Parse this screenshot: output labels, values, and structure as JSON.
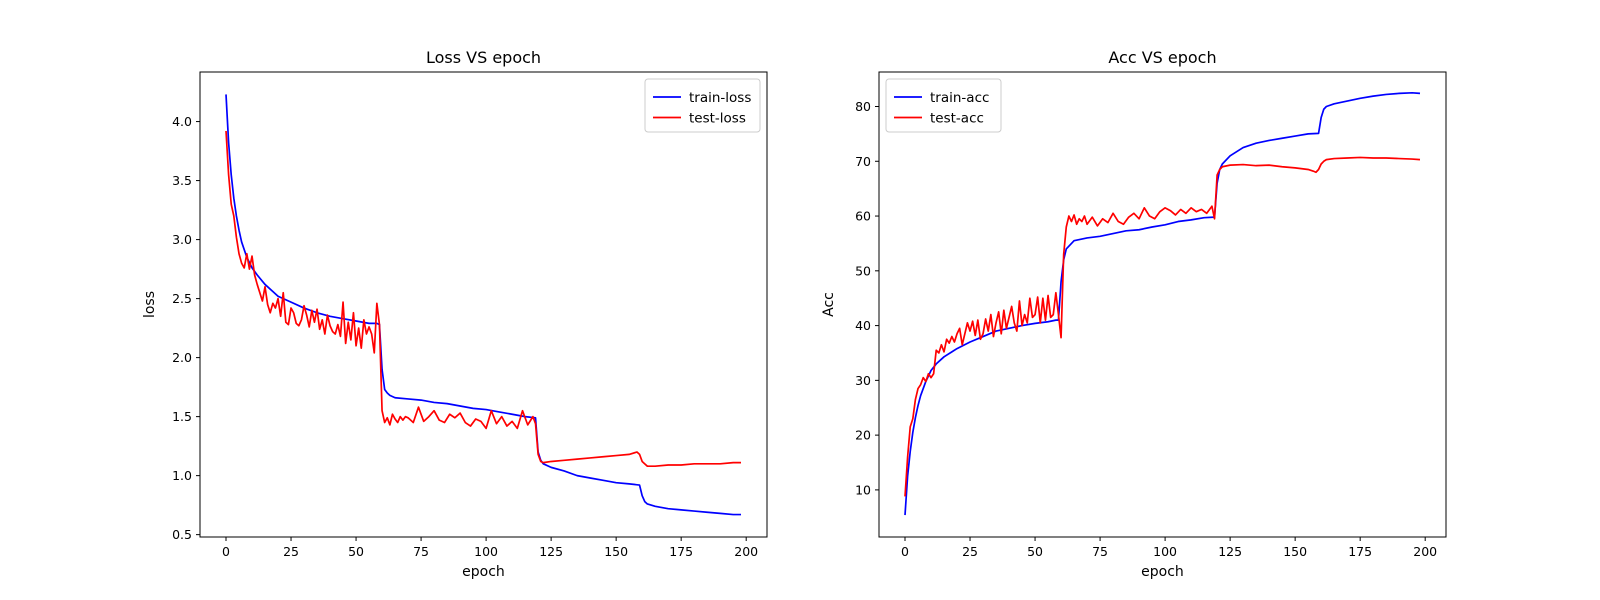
{
  "chart_data": [
    {
      "type": "line",
      "title": "Loss VS epoch",
      "xlabel": "epoch",
      "ylabel": "loss",
      "xlim": [
        -10,
        208
      ],
      "ylim": [
        0.48,
        4.42
      ],
      "xticks": [
        0,
        25,
        50,
        75,
        100,
        125,
        150,
        175,
        200
      ],
      "yticks": [
        0.5,
        1.0,
        1.5,
        2.0,
        2.5,
        3.0,
        3.5,
        4.0
      ],
      "tick_labels_x": [
        "0",
        "25",
        "50",
        "75",
        "100",
        "125",
        "150",
        "175",
        "200"
      ],
      "tick_labels_y": [
        "0.5",
        "1.0",
        "1.5",
        "2.0",
        "2.5",
        "3.0",
        "3.5",
        "4.0"
      ],
      "grid": false,
      "legend": "top-right",
      "series": [
        {
          "name": "train-loss",
          "color": "#0000ff",
          "x": [
            0,
            1,
            2,
            3,
            4,
            5,
            6,
            8,
            10,
            12,
            15,
            18,
            20,
            25,
            30,
            35,
            40,
            45,
            50,
            55,
            58,
            59,
            60,
            61,
            62,
            63,
            65,
            70,
            75,
            80,
            85,
            90,
            95,
            100,
            105,
            110,
            115,
            119,
            120,
            121,
            122,
            125,
            130,
            135,
            140,
            145,
            150,
            155,
            159,
            160,
            161,
            162,
            165,
            170,
            175,
            180,
            185,
            190,
            195,
            198
          ],
          "y": [
            4.23,
            3.82,
            3.55,
            3.35,
            3.2,
            3.08,
            2.98,
            2.85,
            2.76,
            2.7,
            2.62,
            2.56,
            2.52,
            2.47,
            2.42,
            2.38,
            2.35,
            2.33,
            2.31,
            2.29,
            2.29,
            2.28,
            1.9,
            1.73,
            1.7,
            1.68,
            1.66,
            1.65,
            1.64,
            1.62,
            1.61,
            1.59,
            1.57,
            1.56,
            1.54,
            1.52,
            1.5,
            1.49,
            1.2,
            1.13,
            1.1,
            1.07,
            1.04,
            1.0,
            0.98,
            0.96,
            0.94,
            0.93,
            0.92,
            0.83,
            0.78,
            0.76,
            0.74,
            0.72,
            0.71,
            0.7,
            0.69,
            0.68,
            0.67,
            0.67
          ]
        },
        {
          "name": "test-loss",
          "color": "#ff0000",
          "x": [
            0,
            1,
            2,
            3,
            4,
            5,
            6,
            7,
            8,
            9,
            10,
            11,
            12,
            13,
            14,
            15,
            16,
            17,
            18,
            19,
            20,
            21,
            22,
            23,
            24,
            25,
            26,
            27,
            28,
            29,
            30,
            31,
            32,
            33,
            34,
            35,
            36,
            37,
            38,
            39,
            40,
            41,
            42,
            43,
            44,
            45,
            46,
            47,
            48,
            49,
            50,
            51,
            52,
            53,
            54,
            55,
            56,
            57,
            58,
            59,
            60,
            61,
            62,
            63,
            64,
            65,
            66,
            67,
            68,
            69,
            70,
            72,
            74,
            76,
            78,
            80,
            82,
            84,
            86,
            88,
            90,
            92,
            94,
            96,
            98,
            100,
            102,
            104,
            106,
            108,
            110,
            112,
            114,
            116,
            118,
            119,
            120,
            121,
            122,
            125,
            130,
            135,
            140,
            145,
            150,
            155,
            158,
            159,
            160,
            161,
            162,
            165,
            170,
            175,
            180,
            185,
            190,
            195,
            198
          ],
          "y": [
            3.92,
            3.55,
            3.3,
            3.2,
            3.02,
            2.88,
            2.8,
            2.76,
            2.88,
            2.75,
            2.86,
            2.7,
            2.62,
            2.55,
            2.48,
            2.6,
            2.45,
            2.38,
            2.46,
            2.42,
            2.5,
            2.35,
            2.55,
            2.3,
            2.28,
            2.42,
            2.38,
            2.29,
            2.27,
            2.32,
            2.44,
            2.36,
            2.26,
            2.4,
            2.3,
            2.41,
            2.24,
            2.32,
            2.2,
            2.36,
            2.27,
            2.22,
            2.2,
            2.28,
            2.18,
            2.47,
            2.12,
            2.3,
            2.15,
            2.38,
            2.1,
            2.25,
            2.08,
            2.32,
            2.2,
            2.26,
            2.2,
            2.04,
            2.46,
            2.28,
            1.55,
            1.45,
            1.49,
            1.43,
            1.52,
            1.48,
            1.45,
            1.5,
            1.47,
            1.5,
            1.49,
            1.45,
            1.58,
            1.46,
            1.5,
            1.55,
            1.47,
            1.45,
            1.52,
            1.49,
            1.53,
            1.45,
            1.42,
            1.48,
            1.46,
            1.4,
            1.55,
            1.44,
            1.5,
            1.42,
            1.46,
            1.4,
            1.55,
            1.43,
            1.5,
            1.44,
            1.18,
            1.12,
            1.11,
            1.12,
            1.13,
            1.14,
            1.15,
            1.16,
            1.17,
            1.18,
            1.2,
            1.18,
            1.12,
            1.1,
            1.08,
            1.08,
            1.09,
            1.09,
            1.1,
            1.1,
            1.1,
            1.11,
            1.11
          ]
        }
      ]
    },
    {
      "type": "line",
      "title": "Acc VS epoch",
      "xlabel": "epoch",
      "ylabel": "Acc",
      "xlim": [
        -10,
        208
      ],
      "ylim": [
        1.4,
        86.3
      ],
      "xticks": [
        0,
        25,
        50,
        75,
        100,
        125,
        150,
        175,
        200
      ],
      "yticks": [
        10,
        20,
        30,
        40,
        50,
        60,
        70,
        80
      ],
      "tick_labels_x": [
        "0",
        "25",
        "50",
        "75",
        "100",
        "125",
        "150",
        "175",
        "200"
      ],
      "tick_labels_y": [
        "10",
        "20",
        "30",
        "40",
        "50",
        "60",
        "70",
        "80"
      ],
      "grid": false,
      "legend": "top-left",
      "series": [
        {
          "name": "train-acc",
          "color": "#0000ff",
          "x": [
            0,
            1,
            2,
            3,
            4,
            5,
            6,
            8,
            10,
            12,
            15,
            18,
            20,
            25,
            30,
            35,
            40,
            45,
            50,
            55,
            58,
            59,
            60,
            61,
            62,
            63,
            65,
            70,
            75,
            80,
            85,
            90,
            95,
            100,
            105,
            110,
            115,
            119,
            120,
            121,
            122,
            125,
            130,
            135,
            140,
            145,
            150,
            155,
            159,
            160,
            161,
            162,
            165,
            170,
            175,
            180,
            185,
            190,
            195,
            198
          ],
          "y": [
            5.4,
            12.5,
            17,
            20.5,
            23.2,
            25.4,
            27.2,
            29.8,
            31.8,
            33,
            34.3,
            35.2,
            35.8,
            37,
            38,
            39,
            39.5,
            40,
            40.4,
            40.7,
            41,
            41,
            48,
            52,
            54,
            54.5,
            55.5,
            56,
            56.3,
            56.8,
            57.3,
            57.5,
            58,
            58.4,
            59,
            59.3,
            59.7,
            59.8,
            66,
            68.5,
            69.5,
            71,
            72.5,
            73.3,
            73.8,
            74.2,
            74.6,
            75,
            75.1,
            78,
            79.5,
            80,
            80.5,
            81,
            81.5,
            81.9,
            82.2,
            82.4,
            82.5,
            82.4
          ]
        },
        {
          "name": "test-acc",
          "color": "#ff0000",
          "x": [
            0,
            1,
            2,
            3,
            4,
            5,
            6,
            7,
            8,
            9,
            10,
            11,
            12,
            13,
            14,
            15,
            16,
            17,
            18,
            19,
            20,
            21,
            22,
            23,
            24,
            25,
            26,
            27,
            28,
            29,
            30,
            31,
            32,
            33,
            34,
            35,
            36,
            37,
            38,
            39,
            40,
            41,
            42,
            43,
            44,
            45,
            46,
            47,
            48,
            49,
            50,
            51,
            52,
            53,
            54,
            55,
            56,
            57,
            58,
            59,
            60,
            61,
            62,
            63,
            64,
            65,
            66,
            67,
            68,
            69,
            70,
            72,
            74,
            76,
            78,
            80,
            82,
            84,
            86,
            88,
            90,
            92,
            94,
            96,
            98,
            100,
            102,
            104,
            106,
            108,
            110,
            112,
            114,
            116,
            118,
            119,
            120,
            121,
            122,
            125,
            130,
            135,
            140,
            145,
            150,
            155,
            157,
            158,
            159,
            160,
            161,
            162,
            165,
            170,
            175,
            180,
            185,
            190,
            195,
            198
          ],
          "y": [
            8.8,
            16,
            21.5,
            23,
            26.5,
            28.5,
            29.2,
            30.5,
            29.8,
            31.2,
            30.5,
            31.2,
            35.5,
            35,
            36.5,
            35.2,
            37.5,
            36.8,
            38,
            37,
            38.5,
            39.5,
            36.5,
            38.5,
            40.5,
            39,
            40.8,
            38.2,
            41,
            37.5,
            38.5,
            41.2,
            39,
            42,
            38,
            40.5,
            42.5,
            38.5,
            42.8,
            39.5,
            41.5,
            43.5,
            40.5,
            39,
            44.5,
            40,
            42,
            40.5,
            45,
            41.5,
            42,
            45.2,
            40.5,
            45,
            41,
            45.5,
            41.5,
            42,
            46,
            42,
            37.8,
            53,
            58,
            60,
            59,
            60.2,
            58.5,
            59.5,
            59,
            60,
            58.5,
            59.8,
            58.2,
            59.5,
            58.8,
            60.5,
            59,
            58.5,
            59.8,
            60.5,
            59.5,
            61.5,
            60,
            59.5,
            60.8,
            61.5,
            61,
            60.2,
            61.2,
            60.5,
            61.5,
            60.8,
            61.2,
            60.5,
            61.8,
            59.5,
            67.5,
            68.5,
            69,
            69.3,
            69.4,
            69.2,
            69.3,
            69,
            68.8,
            68.5,
            68.2,
            68,
            68.5,
            69.5,
            70,
            70.3,
            70.5,
            70.6,
            70.7,
            70.6,
            70.6,
            70.5,
            70.4,
            70.3
          ]
        }
      ]
    }
  ]
}
